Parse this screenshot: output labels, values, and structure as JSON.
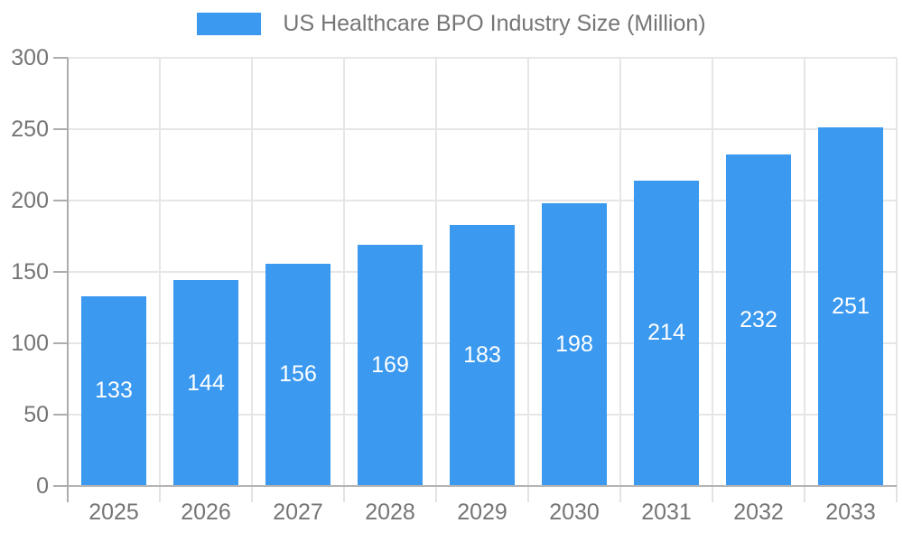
{
  "legend": {
    "label": "US Healthcare BPO Industry Size (Million)"
  },
  "chart_data": {
    "type": "bar",
    "title": "US Healthcare BPO Industry Size (Million)",
    "series_name": "US Healthcare BPO Industry Size (Million)",
    "categories": [
      "2025",
      "2026",
      "2027",
      "2028",
      "2029",
      "2030",
      "2031",
      "2032",
      "2033"
    ],
    "values": [
      133,
      144,
      156,
      169,
      183,
      198,
      214,
      232,
      251
    ],
    "bar_labels": [
      "133",
      "144",
      "156",
      "169",
      "183",
      "198",
      "214",
      "232",
      "251"
    ],
    "xlabel": "",
    "ylabel": "",
    "ylim": [
      0,
      300
    ],
    "yticks": [
      0,
      50,
      100,
      150,
      200,
      250,
      300
    ],
    "grid": true,
    "legend_position": "top",
    "bar_labels_visible": true,
    "colors": {
      "bar": "#3B99F0",
      "bar_label": "#FFFFFF",
      "axis_text": "#757575",
      "gridline": "#E6E6E6",
      "axis_line": "#B3B3B3"
    }
  }
}
